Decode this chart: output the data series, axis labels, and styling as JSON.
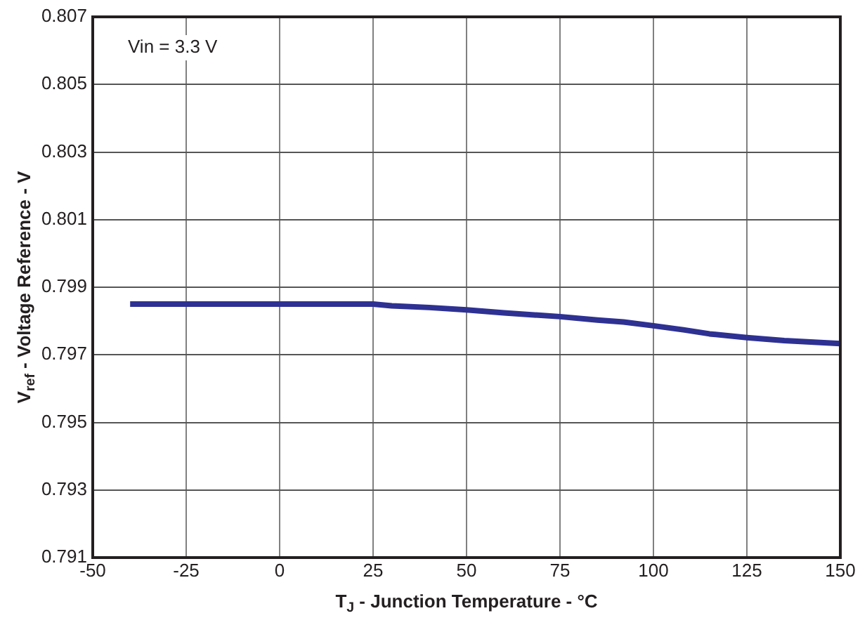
{
  "chart_data": {
    "type": "line",
    "xlabel": "T$_{J}$ - Junction Temperature - °C",
    "ylabel": "V$_{ref}$ - Voltage Reference - V",
    "annotations": [
      "Vin = 3.3 V"
    ],
    "series": [
      {
        "color": "#2e3192",
        "x": [
          -40,
          0,
          25,
          30,
          40,
          50,
          60,
          75,
          85,
          92,
          100,
          108,
          115,
          125,
          135,
          150
        ],
        "values": [
          0.7985,
          0.7985,
          0.7985,
          0.79845,
          0.7984,
          0.79833,
          0.79824,
          0.79813,
          0.79803,
          0.79797,
          0.79786,
          0.79774,
          0.79762,
          0.79751,
          0.79742,
          0.79733
        ]
      }
    ],
    "xlim": [
      -50,
      150
    ],
    "xticks": [
      -50,
      -25,
      0,
      25,
      50,
      75,
      100,
      125,
      150
    ],
    "ylim": [
      0.791,
      0.807
    ],
    "yticks": [
      0.791,
      0.793,
      0.795,
      0.797,
      0.799,
      0.801,
      0.803,
      0.805,
      0.807
    ],
    "grid": true,
    "legend": false,
    "marker": "none",
    "line_style": "solid"
  }
}
